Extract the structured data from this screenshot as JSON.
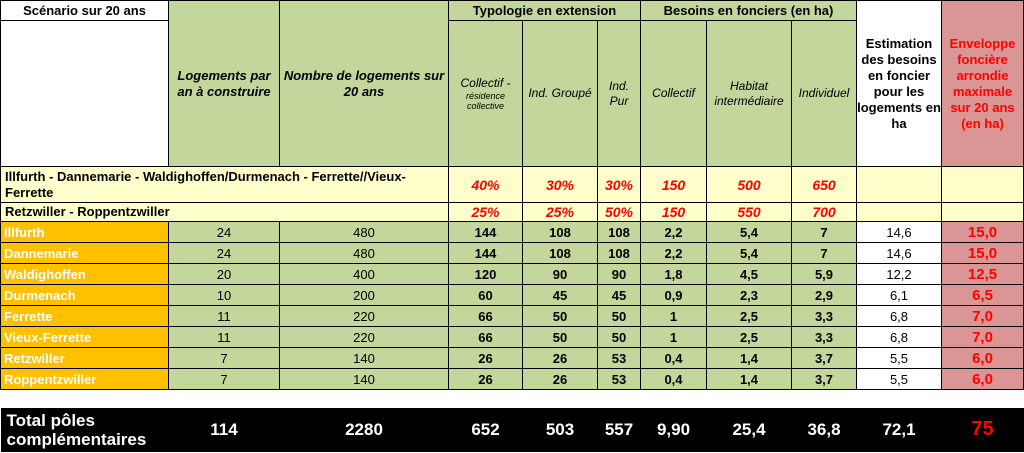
{
  "header": {
    "scenario": "Scénario sur 20 ans",
    "typologie": "Typologie en extension",
    "besoins": "Besoins en fonciers (en ha)",
    "logements_an": "Logements par an à construire",
    "nombre_logements": "Nombre de logements sur 20 ans",
    "collectif_main": "Collectif -",
    "collectif_sub": "résidence collective",
    "ind_groupe": "Ind. Groupé",
    "ind_pur": "Ind. Pur",
    "collectif": "Collectif",
    "habitat_intermediaire": "Habitat intermédiaire",
    "individuel": "Individuel",
    "estimation": "Estimation des besoins en foncier pour les logements en ha",
    "enveloppe": "Enveloppe foncière arrondie maximale sur 20 ans (en ha)"
  },
  "groups": [
    {
      "label": "Illfurth - Dannemarie - Waldighoffen/Durmenach - Ferrette//Vieux-Ferrette",
      "pct_collectif": "40%",
      "pct_groupe": "30%",
      "pct_pur": "30%",
      "d_collectif": "150",
      "d_habitat": "500",
      "d_individuel": "650"
    },
    {
      "label": "Retzwiller - Roppentzwiller",
      "pct_collectif": "25%",
      "pct_groupe": "25%",
      "pct_pur": "50%",
      "d_collectif": "150",
      "d_habitat": "550",
      "d_individuel": "700"
    }
  ],
  "rows": [
    {
      "name": "Illfurth",
      "an": "24",
      "total": "480",
      "coll": "144",
      "grp": "108",
      "pur": "108",
      "b_coll": "2,2",
      "b_hab": "5,4",
      "b_ind": "7",
      "estim": "14,6",
      "env": "15,0"
    },
    {
      "name": "Dannemarie",
      "an": "24",
      "total": "480",
      "coll": "144",
      "grp": "108",
      "pur": "108",
      "b_coll": "2,2",
      "b_hab": "5,4",
      "b_ind": "7",
      "estim": "14,6",
      "env": "15,0"
    },
    {
      "name": "Waldighoffen",
      "an": "20",
      "total": "400",
      "coll": "120",
      "grp": "90",
      "pur": "90",
      "b_coll": "1,8",
      "b_hab": "4,5",
      "b_ind": "5,9",
      "estim": "12,2",
      "env": "12,5"
    },
    {
      "name": "Durmenach",
      "an": "10",
      "total": "200",
      "coll": "60",
      "grp": "45",
      "pur": "45",
      "b_coll": "0,9",
      "b_hab": "2,3",
      "b_ind": "2,9",
      "estim": "6,1",
      "env": "6,5"
    },
    {
      "name": "Ferrette",
      "an": "11",
      "total": "220",
      "coll": "66",
      "grp": "50",
      "pur": "50",
      "b_coll": "1",
      "b_hab": "2,5",
      "b_ind": "3,3",
      "estim": "6,8",
      "env": "7,0"
    },
    {
      "name": "Vieux-Ferrette",
      "an": "11",
      "total": "220",
      "coll": "66",
      "grp": "50",
      "pur": "50",
      "b_coll": "1",
      "b_hab": "2,5",
      "b_ind": "3,3",
      "estim": "6,8",
      "env": "7,0"
    },
    {
      "name": "Retzwiller",
      "an": "7",
      "total": "140",
      "coll": "26",
      "grp": "26",
      "pur": "53",
      "b_coll": "0,4",
      "b_hab": "1,4",
      "b_ind": "3,7",
      "estim": "5,5",
      "env": "6,0"
    },
    {
      "name": "Roppentzwiller",
      "an": "7",
      "total": "140",
      "coll": "26",
      "grp": "26",
      "pur": "53",
      "b_coll": "0,4",
      "b_hab": "1,4",
      "b_ind": "3,7",
      "estim": "5,5",
      "env": "6,0"
    }
  ],
  "total": {
    "label": "Total pôles complémentaires",
    "an": "114",
    "total": "2280",
    "coll": "652",
    "grp": "503",
    "pur": "557",
    "b_coll": "9,90",
    "b_hab": "25,4",
    "b_ind": "36,8",
    "estim": "72,1",
    "env": "75"
  },
  "colors": {
    "green": "#c3d69b",
    "pink": "#d99694",
    "orange": "#ffc000",
    "yellow": "#ffffcc",
    "red": "#ff0000"
  }
}
